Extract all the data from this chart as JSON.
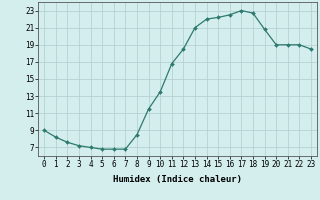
{
  "x": [
    0,
    1,
    2,
    3,
    4,
    5,
    6,
    7,
    8,
    9,
    10,
    11,
    12,
    13,
    14,
    15,
    16,
    17,
    18,
    19,
    20,
    21,
    22,
    23
  ],
  "y": [
    9.0,
    8.2,
    7.6,
    7.2,
    7.0,
    6.8,
    6.8,
    6.8,
    8.5,
    11.5,
    13.5,
    16.8,
    18.5,
    21.0,
    22.0,
    22.2,
    22.5,
    23.0,
    22.7,
    20.8,
    19.0,
    19.0,
    19.0,
    18.5
  ],
  "line_color": "#2d7a6e",
  "marker": "D",
  "marker_size": 2.0,
  "linewidth": 0.9,
  "bg_color": "#d4eeee",
  "grid_color": "#b0cccc",
  "xlabel": "Humidex (Indice chaleur)",
  "xlabel_fontsize": 6.5,
  "tick_fontsize": 5.5,
  "ylim": [
    6,
    24
  ],
  "yticks": [
    7,
    9,
    11,
    13,
    15,
    17,
    19,
    21,
    23
  ],
  "xlim": [
    -0.5,
    23.5
  ],
  "xticks": [
    0,
    1,
    2,
    3,
    4,
    5,
    6,
    7,
    8,
    9,
    10,
    11,
    12,
    13,
    14,
    15,
    16,
    17,
    18,
    19,
    20,
    21,
    22,
    23
  ]
}
